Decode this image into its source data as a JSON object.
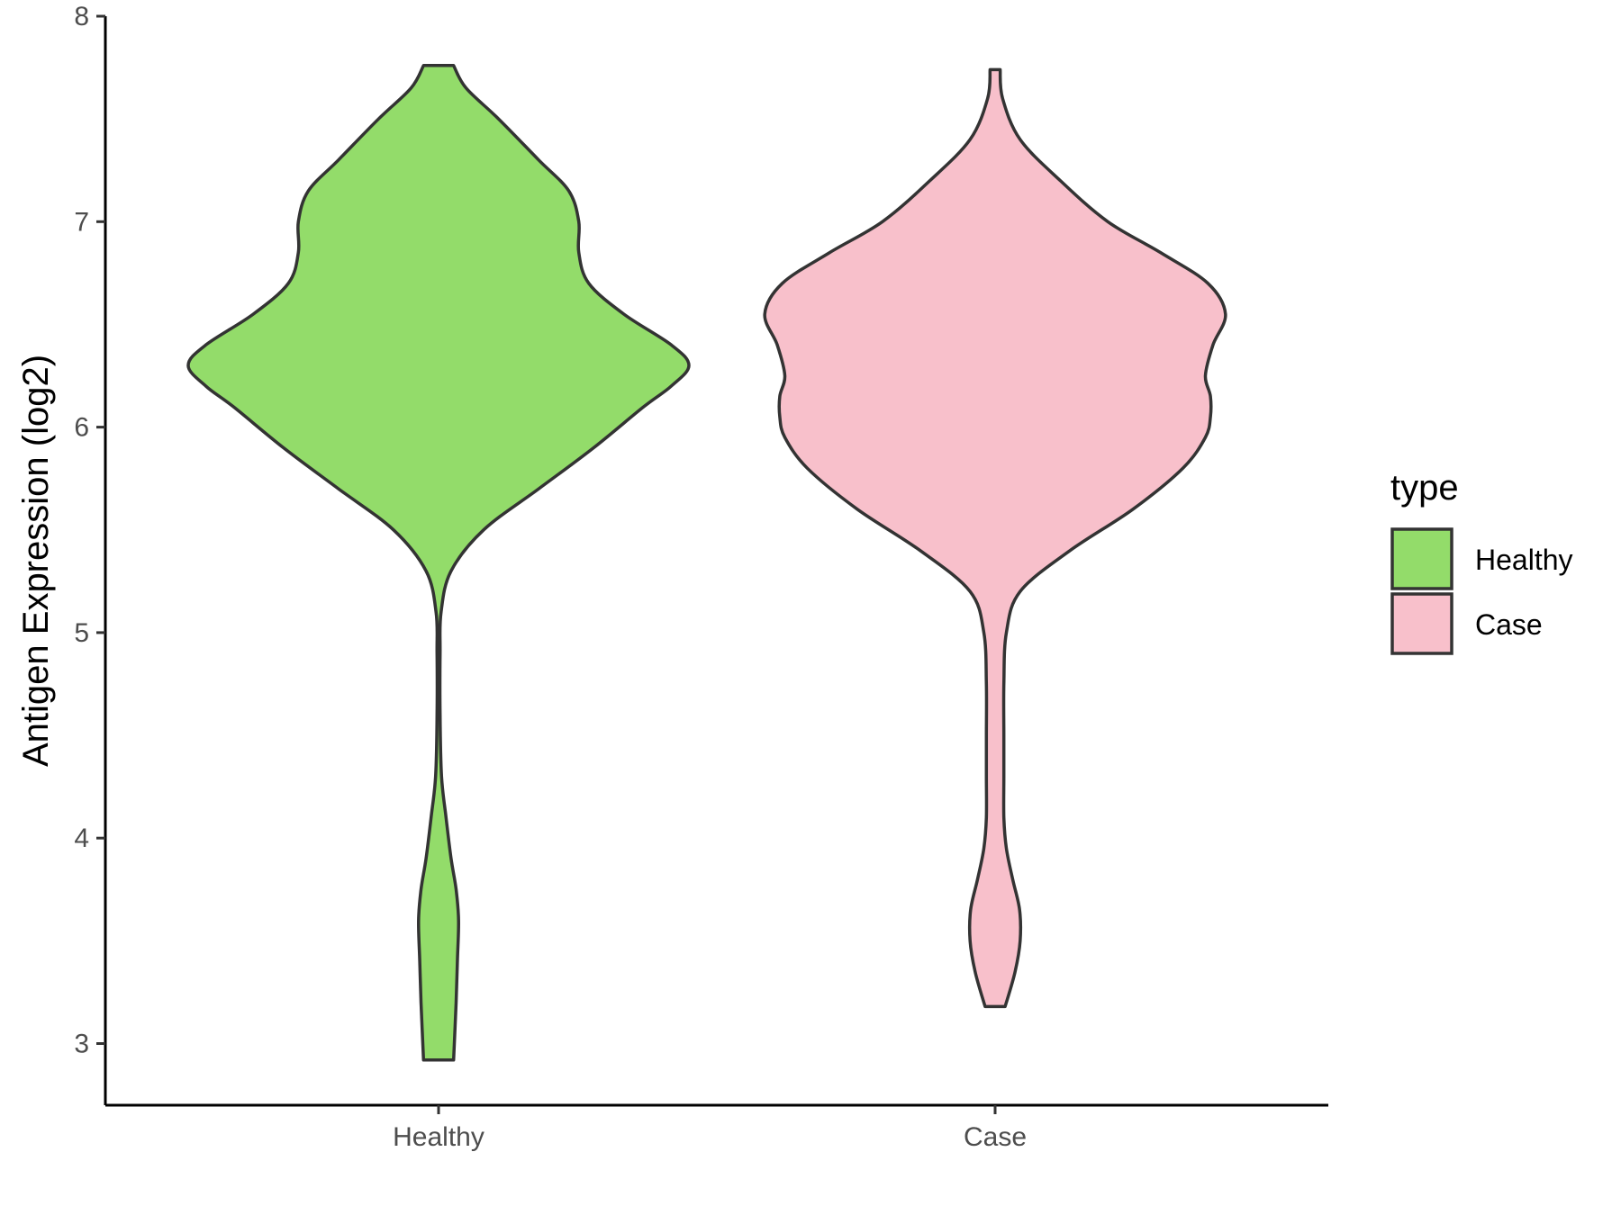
{
  "chart_data": {
    "type": "violin",
    "title": "",
    "xlabel": "",
    "ylabel": "Antigen Expression (log2)",
    "ylim": [
      2.7,
      8.0
    ],
    "yticks": [
      3,
      4,
      5,
      6,
      7,
      8
    ],
    "categories": [
      "Healthy",
      "Case"
    ],
    "grid": false,
    "legend": {
      "title": "type",
      "position": "right",
      "entries": [
        "Healthy",
        "Case"
      ]
    },
    "series": [
      {
        "name": "Healthy",
        "color": "#93dc6a",
        "min": 2.92,
        "max": 7.76,
        "density": [
          [
            2.92,
            0.06
          ],
          [
            3.2,
            0.07
          ],
          [
            3.4,
            0.075
          ],
          [
            3.6,
            0.08
          ],
          [
            3.75,
            0.07
          ],
          [
            3.9,
            0.05
          ],
          [
            4.1,
            0.03
          ],
          [
            4.3,
            0.012
          ],
          [
            4.6,
            0.006
          ],
          [
            4.9,
            0.006
          ],
          [
            5.1,
            0.01
          ],
          [
            5.3,
            0.05
          ],
          [
            5.5,
            0.18
          ],
          [
            5.7,
            0.4
          ],
          [
            5.9,
            0.62
          ],
          [
            6.1,
            0.82
          ],
          [
            6.2,
            0.93
          ],
          [
            6.3,
            1.0
          ],
          [
            6.4,
            0.93
          ],
          [
            6.55,
            0.74
          ],
          [
            6.7,
            0.6
          ],
          [
            6.85,
            0.56
          ],
          [
            7.0,
            0.56
          ],
          [
            7.15,
            0.52
          ],
          [
            7.3,
            0.4
          ],
          [
            7.5,
            0.24
          ],
          [
            7.65,
            0.11
          ],
          [
            7.76,
            0.06
          ]
        ]
      },
      {
        "name": "Case",
        "color": "#f8c0cb",
        "min": 3.18,
        "max": 7.74,
        "density": [
          [
            3.18,
            0.04
          ],
          [
            3.35,
            0.08
          ],
          [
            3.5,
            0.1
          ],
          [
            3.65,
            0.098
          ],
          [
            3.8,
            0.07
          ],
          [
            3.95,
            0.045
          ],
          [
            4.1,
            0.035
          ],
          [
            4.3,
            0.035
          ],
          [
            4.5,
            0.035
          ],
          [
            4.75,
            0.035
          ],
          [
            5.0,
            0.045
          ],
          [
            5.2,
            0.1
          ],
          [
            5.4,
            0.3
          ],
          [
            5.6,
            0.55
          ],
          [
            5.8,
            0.75
          ],
          [
            5.95,
            0.84
          ],
          [
            6.05,
            0.86
          ],
          [
            6.15,
            0.86
          ],
          [
            6.25,
            0.84
          ],
          [
            6.4,
            0.87
          ],
          [
            6.55,
            0.92
          ],
          [
            6.7,
            0.85
          ],
          [
            6.85,
            0.66
          ],
          [
            7.0,
            0.45
          ],
          [
            7.2,
            0.26
          ],
          [
            7.4,
            0.1
          ],
          [
            7.6,
            0.03
          ],
          [
            7.74,
            0.02
          ]
        ]
      }
    ]
  }
}
